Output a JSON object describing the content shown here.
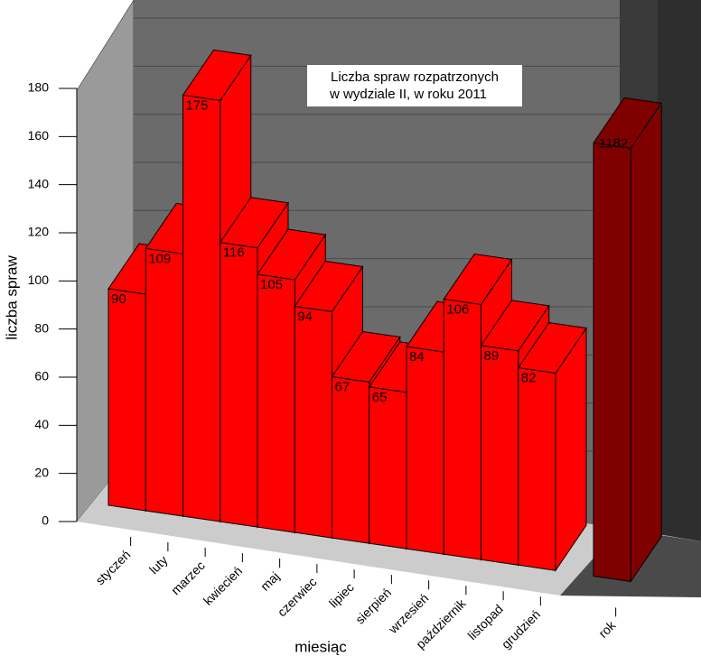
{
  "chart_data": {
    "type": "bar3d",
    "title_lines": [
      "Liczba spraw rozpatrzonych",
      "w  wydziale II, w roku 2011"
    ],
    "y_label": "liczba spraw",
    "x_label": "miesiąc",
    "categories": [
      "styczeń",
      "luty",
      "marzec",
      "kwiecień",
      "maj",
      "czerwiec",
      "lipiec",
      "sierpień",
      "wrzesień",
      "październik",
      "listopad",
      "grudzień"
    ],
    "values": [
      90,
      109,
      175,
      116,
      105,
      94,
      67,
      65,
      84,
      106,
      89,
      82
    ],
    "color": "#ff0000",
    "total": {
      "category": "rok",
      "value": 1182,
      "color": "#800000"
    },
    "ylim": [
      0,
      180
    ],
    "yticks": [
      0,
      20,
      40,
      60,
      80,
      100,
      120,
      140,
      160,
      180
    ],
    "grid": true
  }
}
